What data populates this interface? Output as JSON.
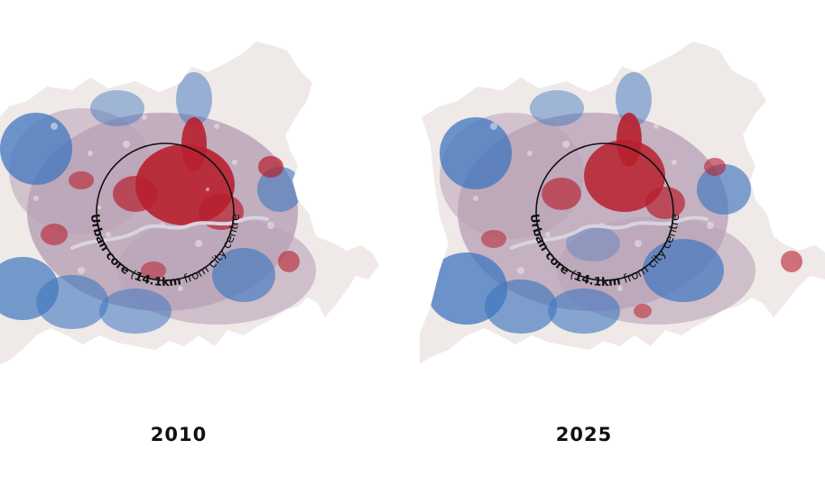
{
  "maps": [
    {
      "year": "2010",
      "ring_label": {
        "bold": "Urban core",
        "paren_open": " (",
        "distance": "14.1km",
        "rest": " from city centre)"
      }
    },
    {
      "year": "2025",
      "ring_label": {
        "bold": "Urban core",
        "paren_open": " (",
        "distance": "14.1km",
        "rest": " from city centre)"
      }
    }
  ],
  "colors": {
    "base": "#efe9e8",
    "mid": "#b9a3b7",
    "red": "#b8202e",
    "blue": "#3f76bf",
    "river": "#c9c4d2",
    "ring": "#111111"
  }
}
